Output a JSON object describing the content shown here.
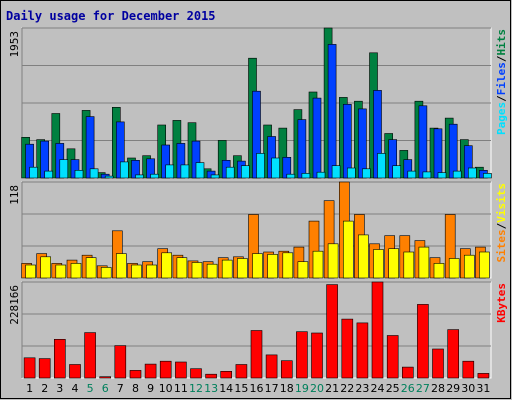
{
  "title": "Daily usage for December 2015",
  "colors": {
    "background": "#c0c0c0",
    "title": "#0000a0",
    "hits": "#008040",
    "files": "#0040ff",
    "pages": "#00e0ff",
    "visits": "#ff8000",
    "sites": "#ffff00",
    "kbytes": "#ff0000",
    "weekend_label": "#00805c",
    "weekday_label": "#000000"
  },
  "chart_data": [
    {
      "type": "bar",
      "title": "",
      "ylabel_parts": [
        "Pages",
        "Files",
        "Hits"
      ],
      "ymax_label": "1953",
      "ylim": [
        0,
        1953
      ],
      "categories": [
        "1",
        "2",
        "3",
        "4",
        "5",
        "6",
        "7",
        "8",
        "9",
        "10",
        "11",
        "12",
        "13",
        "14",
        "15",
        "16",
        "17",
        "18",
        "19",
        "20",
        "21",
        "22",
        "23",
        "24",
        "25",
        "26",
        "27",
        "28",
        "29",
        "30",
        "31"
      ],
      "series": [
        {
          "name": "Hits",
          "values": [
            530,
            500,
            840,
            380,
            880,
            70,
            920,
            260,
            290,
            690,
            750,
            720,
            120,
            490,
            290,
            1560,
            690,
            650,
            890,
            1120,
            1953,
            1050,
            1000,
            1630,
            580,
            360,
            1000,
            650,
            780,
            500,
            140
          ]
        },
        {
          "name": "Files",
          "values": [
            440,
            480,
            450,
            240,
            800,
            50,
            730,
            230,
            250,
            430,
            450,
            480,
            90,
            230,
            220,
            1130,
            540,
            270,
            760,
            1040,
            1740,
            960,
            900,
            1140,
            500,
            240,
            940,
            640,
            700,
            420,
            100
          ]
        },
        {
          "name": "Pages",
          "values": [
            140,
            90,
            240,
            100,
            120,
            25,
            210,
            40,
            50,
            170,
            170,
            200,
            40,
            140,
            160,
            320,
            260,
            50,
            60,
            75,
            160,
            130,
            120,
            320,
            160,
            90,
            80,
            70,
            90,
            130,
            60
          ]
        }
      ]
    },
    {
      "type": "bar",
      "title": "",
      "ylabel_parts": [
        "Sites",
        "Visits"
      ],
      "ymax_label": "118",
      "ylim": [
        0,
        118
      ],
      "categories": [
        "1",
        "2",
        "3",
        "4",
        "5",
        "6",
        "7",
        "8",
        "9",
        "10",
        "11",
        "12",
        "13",
        "14",
        "15",
        "16",
        "17",
        "18",
        "19",
        "20",
        "21",
        "22",
        "23",
        "24",
        "25",
        "26",
        "27",
        "28",
        "29",
        "30",
        "31"
      ],
      "series": [
        {
          "name": "Visits",
          "values": [
            18,
            30,
            18,
            22,
            28,
            15,
            58,
            18,
            20,
            36,
            28,
            21,
            20,
            25,
            26,
            78,
            32,
            33,
            38,
            70,
            95,
            118,
            78,
            42,
            52,
            52,
            46,
            25,
            78,
            36,
            38
          ]
        },
        {
          "name": "Sites",
          "values": [
            16,
            26,
            16,
            18,
            25,
            13,
            30,
            16,
            16,
            31,
            25,
            19,
            17,
            22,
            24,
            30,
            29,
            31,
            20,
            33,
            42,
            70,
            53,
            35,
            36,
            32,
            38,
            18,
            24,
            28,
            32
          ]
        }
      ]
    },
    {
      "type": "bar",
      "title": "",
      "ylabel_parts": [
        "KBytes"
      ],
      "ymax_label": "228166",
      "ylim": [
        0,
        228166
      ],
      "categories": [
        "1",
        "2",
        "3",
        "4",
        "5",
        "6",
        "7",
        "8",
        "9",
        "10",
        "11",
        "12",
        "13",
        "14",
        "15",
        "16",
        "17",
        "18",
        "19",
        "20",
        "21",
        "22",
        "23",
        "24",
        "25",
        "26",
        "27",
        "28",
        "29",
        "30",
        "31"
      ],
      "series": [
        {
          "name": "KBytes",
          "values": [
            48000,
            46000,
            92000,
            32000,
            108000,
            3000,
            77000,
            18000,
            33000,
            40000,
            38000,
            22000,
            9000,
            16000,
            32000,
            113000,
            55000,
            41000,
            110000,
            107000,
            222000,
            140000,
            131000,
            228166,
            101000,
            26000,
            175000,
            69000,
            115000,
            40000,
            11000
          ]
        }
      ]
    }
  ],
  "x_labels": [
    {
      "text": "1",
      "weekend": false
    },
    {
      "text": "2",
      "weekend": false
    },
    {
      "text": "3",
      "weekend": false
    },
    {
      "text": "4",
      "weekend": false
    },
    {
      "text": "5",
      "weekend": true
    },
    {
      "text": "6",
      "weekend": true
    },
    {
      "text": "7",
      "weekend": false
    },
    {
      "text": "8",
      "weekend": false
    },
    {
      "text": "9",
      "weekend": false
    },
    {
      "text": "10",
      "weekend": false
    },
    {
      "text": "11",
      "weekend": false
    },
    {
      "text": "12",
      "weekend": true
    },
    {
      "text": "13",
      "weekend": true
    },
    {
      "text": "14",
      "weekend": false
    },
    {
      "text": "15",
      "weekend": false
    },
    {
      "text": "16",
      "weekend": false
    },
    {
      "text": "17",
      "weekend": false
    },
    {
      "text": "18",
      "weekend": false
    },
    {
      "text": "19",
      "weekend": true
    },
    {
      "text": "20",
      "weekend": true
    },
    {
      "text": "21",
      "weekend": false
    },
    {
      "text": "22",
      "weekend": false
    },
    {
      "text": "23",
      "weekend": false
    },
    {
      "text": "24",
      "weekend": false
    },
    {
      "text": "25",
      "weekend": false
    },
    {
      "text": "26",
      "weekend": true
    },
    {
      "text": "27",
      "weekend": true
    },
    {
      "text": "28",
      "weekend": false
    },
    {
      "text": "29",
      "weekend": false
    },
    {
      "text": "30",
      "weekend": false
    },
    {
      "text": "31",
      "weekend": false
    }
  ]
}
